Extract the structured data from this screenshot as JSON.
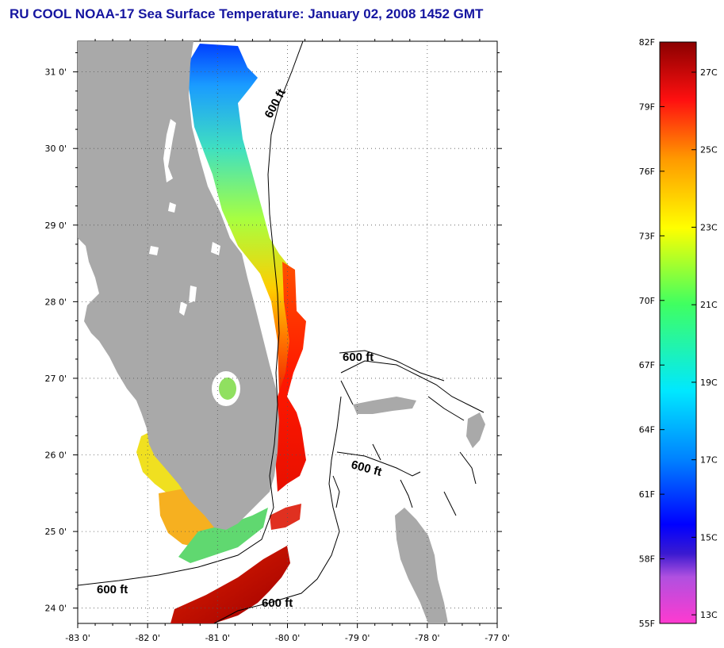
{
  "title": "RU COOL  NOAA-17  Sea Surface Temperature:  January 02, 2008 1452 GMT",
  "map": {
    "lon_range": [
      -83,
      -77
    ],
    "lat_range": [
      23.8,
      31.4
    ],
    "x_ticks": [
      "-83 0'",
      "-82 0'",
      "-81 0'",
      "-80 0'",
      "-79 0'",
      "-78 0'",
      "-77 0'"
    ],
    "y_ticks": [
      "31 0'",
      "30 0'",
      "29 0'",
      "28 0'",
      "27 0'",
      "26 0'",
      "25 0'",
      "24 0'"
    ],
    "grid": true,
    "land_color": "#a9a9a9",
    "contour_labels": [
      "600 ft",
      "600 ft",
      "600 ft",
      "600 ft",
      "600 ft"
    ]
  },
  "colorbar": {
    "fahrenheit": [
      "82F",
      "79F",
      "76F",
      "73F",
      "70F",
      "67F",
      "64F",
      "61F",
      "58F",
      "55F"
    ],
    "celsius": [
      "27C",
      "25C",
      "23C",
      "21C",
      "19C",
      "17C",
      "15C",
      "13C"
    ],
    "range_f": [
      55,
      82
    ]
  },
  "colors": {
    "title": "#1515a0",
    "land": "#a9a9a9"
  }
}
